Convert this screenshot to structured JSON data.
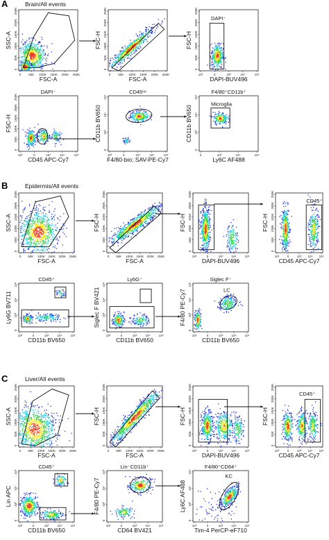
{
  "figure": {
    "colors": {
      "density_low": "#1b2fd6",
      "density_mid": "#1ec8e0",
      "density_high": "#3dd44a",
      "density_peak": "#f2e51c",
      "density_max": "#e83a1e",
      "gate": "#111111"
    },
    "sections": [
      {
        "id": "A",
        "letter": "A",
        "title": "Brain/All events",
        "rows": [
          [
            {
              "xlabel": "FSC-A",
              "ylabel": "SSC-A",
              "title": "",
              "gate_label": "",
              "xticks": [
                "0",
                "50K",
                "100K",
                "150K",
                "200K",
                "250K"
              ],
              "yticks": [
                "0",
                "50K",
                "100K",
                "150K",
                "200K",
                "250K"
              ]
            },
            {
              "xlabel": "FSC-A",
              "ylabel": "FSC-H",
              "title": "",
              "gate_label": "",
              "xticks": [
                "0",
                "50K",
                "100K",
                "150K",
                "200K",
                "250K"
              ],
              "yticks": [
                "0",
                "50K",
                "100K",
                "150K",
                "200K",
                "250K"
              ]
            },
            {
              "xlabel": "DAPI-BUV496",
              "ylabel": "FSC-H",
              "title": "",
              "gate_label": "DAPI⁻",
              "xticks": [
                "10³",
                "0",
                "10³",
                "10⁴",
                "10⁵"
              ],
              "yticks": [
                "0",
                "50K",
                "100K",
                "150K",
                "200K",
                "250K"
              ]
            }
          ],
          [
            {
              "xlabel": "CD45 APC-Cy7",
              "ylabel": "FSC-H",
              "title": "DAPI⁻",
              "gate_label": "",
              "xticks": [
                "10³",
                "0",
                "10³",
                "10⁴",
                "10⁵"
              ],
              "yticks": [
                "0",
                "50K",
                "100K",
                "150K",
                "200K",
                "250K"
              ]
            },
            {
              "xlabel": "F4/80-bio; SAV-PE-Cy7",
              "ylabel": "CD11b BV650",
              "title": "CD45ⁱⁿᵗ",
              "gate_label": "",
              "xticks": [
                "10³",
                "0",
                "10³",
                "10⁴",
                "10⁵"
              ],
              "yticks": [
                "0",
                "10³",
                "10⁴",
                "10⁵"
              ]
            },
            {
              "xlabel": "Ly6C AF488",
              "ylabel": "CD11b BV650",
              "title": "F4/80⁺CD11b⁺",
              "gate_label": "Microglia",
              "xticks": [
                "0",
                "10³",
                "10⁴",
                "10⁵"
              ],
              "yticks": [
                "0",
                "10³",
                "10⁴",
                "10⁵"
              ]
            }
          ]
        ]
      },
      {
        "id": "B",
        "letter": "B",
        "title": "Epidermis/All events",
        "rows": [
          [
            {
              "xlabel": "FSC-A",
              "ylabel": "SSC-A",
              "title": "",
              "gate_label": "",
              "xticks": [
                "0",
                "50K",
                "100K",
                "150K",
                "200K",
                "250K"
              ],
              "yticks": [
                "0",
                "50K",
                "100K",
                "150K",
                "200K",
                "250K"
              ]
            },
            {
              "xlabel": "FSC-A",
              "ylabel": "FSC-H",
              "title": "",
              "gate_label": "",
              "xticks": [
                "0",
                "50K",
                "100K",
                "150K",
                "200K",
                "250K"
              ],
              "yticks": [
                "0",
                "50K",
                "100K",
                "150K",
                "200K",
                "250K"
              ]
            },
            {
              "xlabel": "DAPI-BUV496",
              "ylabel": "FSC-H",
              "title": "",
              "gate_label": "",
              "xticks": [
                "10³",
                "0",
                "10³",
                "10⁴",
                "10⁵"
              ],
              "yticks": [
                "0",
                "50K",
                "100K",
                "150K",
                "200K",
                "250K"
              ]
            },
            {
              "xlabel": "CD45 APC-Cy7",
              "ylabel": "FSC-H",
              "title": "",
              "gate_label": "CD45⁺",
              "xticks": [
                "10³",
                "0",
                "10³",
                "10⁴",
                "10⁵"
              ],
              "yticks": [
                "0",
                "50K",
                "100K",
                "150K",
                "200K",
                "250K"
              ]
            }
          ],
          [
            {
              "xlabel": "CD11b BV650",
              "ylabel": "Ly6G BV711",
              "title": "CD45⁺",
              "gate_label": "",
              "xticks": [
                "10²",
                "0",
                "10³",
                "10⁴",
                "10⁵"
              ],
              "yticks": [
                "0",
                "10³",
                "10⁴",
                "10⁵"
              ]
            },
            {
              "xlabel": "CD11b BV650",
              "ylabel": "Siglec F BV421",
              "title": "Ly6G⁻",
              "gate_label": "",
              "xticks": [
                "10²",
                "0",
                "10³",
                "10⁴",
                "10⁵"
              ],
              "yticks": [
                "0",
                "10³",
                "10⁴",
                "10⁵"
              ]
            },
            {
              "xlabel": "CD11b BV650",
              "ylabel": "F4/80 PE-Cy7",
              "title": "Siglec F⁻",
              "gate_label": "LC",
              "xticks": [
                "10²",
                "0",
                "10³",
                "10⁴",
                "10⁵"
              ],
              "yticks": [
                "0",
                "10³",
                "10⁴",
                "10⁵"
              ]
            }
          ]
        ]
      },
      {
        "id": "C",
        "letter": "C",
        "title": "Liver/All events",
        "rows": [
          [
            {
              "xlabel": "FSC-A",
              "ylabel": "SSC-A",
              "title": "",
              "gate_label": "",
              "xticks": [
                "0",
                "50K",
                "100K",
                "150K",
                "200K",
                "250K"
              ],
              "yticks": [
                "0",
                "50K",
                "100K",
                "150K",
                "200K",
                "250K"
              ]
            },
            {
              "xlabel": "FSC-A",
              "ylabel": "FSC-H",
              "title": "",
              "gate_label": "",
              "xticks": [
                "0",
                "50K",
                "100K",
                "150K",
                "200K",
                "250K"
              ],
              "yticks": [
                "0",
                "50K",
                "100K",
                "150K",
                "200K",
                "250K"
              ]
            },
            {
              "xlabel": "DAPI-BUV496",
              "ylabel": "FSC-H",
              "title": "",
              "gate_label": "",
              "xticks": [
                "10³",
                "0",
                "10³",
                "10⁴",
                "10⁵"
              ],
              "yticks": [
                "0",
                "50K",
                "100K",
                "150K",
                "200K",
                "250K"
              ]
            },
            {
              "xlabel": "CD45 APC-Cy7",
              "ylabel": "FSC-H",
              "title": "",
              "gate_label": "CD45⁺",
              "xticks": [
                "10³",
                "0",
                "10³",
                "10⁴",
                "10⁵"
              ],
              "yticks": [
                "0",
                "50K",
                "100K",
                "150K",
                "200K",
                "250K"
              ]
            }
          ],
          [
            {
              "xlabel": "CD11b BV650",
              "ylabel": "Lin APC",
              "title": "CD45⁺",
              "gate_label": "",
              "xticks": [
                "10²",
                "0",
                "10³",
                "10⁴",
                "10⁵"
              ],
              "yticks": [
                "0",
                "10³",
                "10⁴",
                "10⁵"
              ]
            },
            {
              "xlabel": "CD64 BV421",
              "ylabel": "F4/80 PE-Cy7",
              "title": "Lin⁻CD11b⁺",
              "gate_label": "",
              "xticks": [
                "10²",
                "0",
                "10³",
                "10⁴",
                "10⁵"
              ],
              "yticks": [
                "0",
                "10³",
                "10⁴",
                "10⁵"
              ]
            },
            {
              "xlabel": "Tim-4 PerCP-eF710",
              "ylabel": "Ly6C AF488",
              "title": "F4/80⁺CD64⁺",
              "gate_label": "KC",
              "xticks": [
                "10²",
                "0",
                "10³",
                "10⁴",
                "10⁵"
              ],
              "yticks": [
                "0",
                "10³",
                "10⁴",
                "10⁵"
              ]
            }
          ]
        ]
      }
    ]
  }
}
